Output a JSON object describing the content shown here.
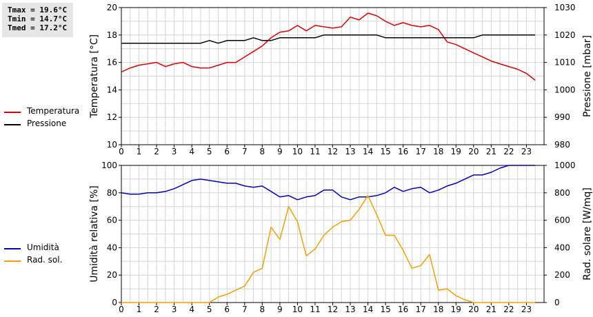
{
  "stats": {
    "tmax": "Tmax = 19.6°C",
    "tmin": "Tmin = 14.7°C",
    "tmed": "Tmed = 17.2°C"
  },
  "legend_top": [
    {
      "label": "Temperatura",
      "color": "#dd0000"
    },
    {
      "label": "Pressione",
      "color": "#000000"
    }
  ],
  "legend_bottom": [
    {
      "label": "Umidità",
      "color": "#0000bb"
    },
    {
      "label": "Rad. sol.",
      "color": "#f0a000"
    }
  ],
  "chart_data": [
    {
      "type": "line",
      "title": "",
      "xlabel": "",
      "x_ticks": [
        "0",
        "1",
        "2",
        "3",
        "4",
        "5",
        "6",
        "7",
        "8",
        "9",
        "10",
        "11",
        "12",
        "13",
        "14",
        "15",
        "16",
        "17",
        "18",
        "19",
        "20",
        "21",
        "22",
        "23"
      ],
      "xlim": [
        0,
        24
      ],
      "ylabel_left": "Temperatura [°C]",
      "ylim_left": [
        10,
        20
      ],
      "yticks_left": [
        "10",
        "12",
        "14",
        "16",
        "18",
        "20"
      ],
      "ylabel_right": "Pressione [mbar]",
      "ylim_right": [
        980,
        1030
      ],
      "yticks_right": [
        "980",
        "990",
        "1000",
        "1010",
        "1020",
        "1030"
      ],
      "grid": true,
      "series": [
        {
          "name": "Temperatura",
          "axis": "left",
          "color": "#dd0000",
          "x": [
            0,
            0.5,
            1,
            1.5,
            2,
            2.5,
            3,
            3.5,
            4,
            4.5,
            5,
            5.5,
            6,
            6.5,
            7,
            7.5,
            8,
            8.5,
            9,
            9.5,
            10,
            10.5,
            11,
            11.5,
            12,
            12.5,
            13,
            13.5,
            14,
            14.5,
            15,
            15.5,
            16,
            16.5,
            17,
            17.5,
            18,
            18.5,
            19,
            19.5,
            20,
            20.5,
            21,
            21.5,
            22,
            22.5,
            23,
            23.5
          ],
          "values": [
            15.3,
            15.6,
            15.8,
            15.9,
            16.0,
            15.7,
            15.9,
            16.0,
            15.7,
            15.6,
            15.6,
            15.8,
            16.0,
            16.0,
            16.4,
            16.8,
            17.2,
            17.8,
            18.2,
            18.3,
            18.7,
            18.3,
            18.7,
            18.6,
            18.5,
            18.6,
            19.3,
            19.1,
            19.6,
            19.4,
            19.0,
            18.7,
            18.9,
            18.7,
            18.6,
            18.7,
            18.4,
            17.5,
            17.3,
            17.0,
            16.7,
            16.4,
            16.1,
            15.9,
            15.7,
            15.5,
            15.2,
            14.7
          ]
        },
        {
          "name": "Pressione",
          "axis": "right",
          "color": "#000000",
          "x": [
            0,
            0.5,
            1,
            1.5,
            2,
            2.5,
            3,
            3.5,
            4,
            4.5,
            5,
            5.5,
            6,
            6.5,
            7,
            7.5,
            8,
            8.5,
            9,
            9.5,
            10,
            10.5,
            11,
            11.5,
            12,
            12.5,
            13,
            13.5,
            14,
            14.5,
            15,
            15.5,
            16,
            16.5,
            17,
            17.5,
            18,
            18.5,
            19,
            19.5,
            20,
            20.5,
            21,
            21.5,
            22,
            22.5,
            23,
            23.5
          ],
          "values": [
            1017,
            1017,
            1017,
            1017,
            1017,
            1017,
            1017,
            1017,
            1017,
            1017,
            1018,
            1017,
            1018,
            1018,
            1018,
            1019,
            1018,
            1018,
            1019,
            1019,
            1019,
            1019,
            1019,
            1020,
            1020,
            1020,
            1020,
            1020,
            1020,
            1020,
            1019,
            1019,
            1019,
            1019,
            1019,
            1019,
            1019,
            1019,
            1019,
            1019,
            1019,
            1020,
            1020,
            1020,
            1020,
            1020,
            1020,
            1020
          ]
        }
      ]
    },
    {
      "type": "line",
      "title": "",
      "xlabel": "",
      "x_ticks": [
        "0",
        "1",
        "2",
        "3",
        "4",
        "5",
        "6",
        "7",
        "8",
        "9",
        "10",
        "11",
        "12",
        "13",
        "14",
        "15",
        "16",
        "17",
        "18",
        "19",
        "20",
        "21",
        "22",
        "23"
      ],
      "xlim": [
        0,
        24
      ],
      "ylabel_left": "Umidità relativa [%]",
      "ylim_left": [
        0,
        100
      ],
      "yticks_left": [
        "0",
        "20",
        "40",
        "60",
        "80",
        "100"
      ],
      "ylabel_right": "Rad. solare [W/mq]",
      "ylim_right": [
        0,
        1000
      ],
      "yticks_right": [
        "0",
        "200",
        "400",
        "600",
        "800",
        "1000"
      ],
      "grid": true,
      "series": [
        {
          "name": "Umidità",
          "axis": "left",
          "color": "#0000bb",
          "x": [
            0,
            0.5,
            1,
            1.5,
            2,
            2.5,
            3,
            3.5,
            4,
            4.5,
            5,
            5.5,
            6,
            6.5,
            7,
            7.5,
            8,
            8.5,
            9,
            9.5,
            10,
            10.5,
            11,
            11.5,
            12,
            12.5,
            13,
            13.5,
            14,
            14.5,
            15,
            15.5,
            16,
            16.5,
            17,
            17.5,
            18,
            18.5,
            19,
            19.5,
            20,
            20.5,
            21,
            21.5,
            22,
            22.5,
            23,
            23.5
          ],
          "values": [
            80,
            79,
            79,
            80,
            80,
            81,
            83,
            86,
            89,
            90,
            89,
            88,
            87,
            87,
            85,
            84,
            85,
            81,
            77,
            78,
            75,
            77,
            78,
            82,
            82,
            77,
            75,
            77,
            77,
            78,
            80,
            84,
            81,
            83,
            84,
            80,
            82,
            85,
            87,
            90,
            93,
            93,
            95,
            98,
            100,
            100,
            100,
            100
          ]
        },
        {
          "name": "Rad. sol.",
          "axis": "right",
          "color": "#f0a000",
          "x": [
            0,
            0.5,
            1,
            1.5,
            2,
            2.5,
            3,
            3.5,
            4,
            4.5,
            5,
            5.5,
            6,
            6.5,
            7,
            7.5,
            8,
            8.5,
            9,
            9.5,
            10,
            10.5,
            11,
            11.5,
            12,
            12.5,
            13,
            13.5,
            14,
            14.5,
            15,
            15.5,
            16,
            16.5,
            17,
            17.5,
            18,
            18.5,
            19,
            19.5,
            20,
            20.5,
            21,
            21.5,
            22,
            22.5,
            23,
            23.5
          ],
          "values": [
            0,
            0,
            0,
            0,
            0,
            0,
            0,
            0,
            0,
            0,
            0,
            40,
            60,
            90,
            120,
            220,
            250,
            550,
            460,
            700,
            590,
            340,
            390,
            490,
            550,
            590,
            600,
            680,
            780,
            640,
            490,
            490,
            380,
            250,
            270,
            350,
            90,
            100,
            50,
            20,
            0,
            0,
            0,
            0,
            0,
            0,
            0,
            0
          ]
        }
      ]
    }
  ]
}
